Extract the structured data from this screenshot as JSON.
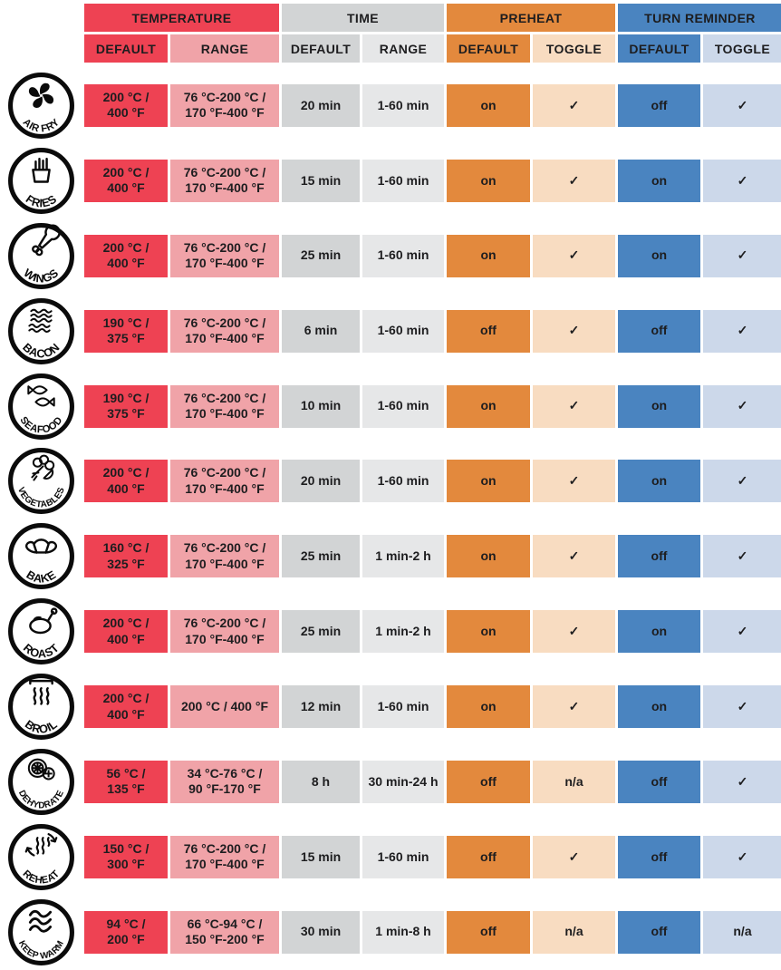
{
  "colors": {
    "brand_red": "#ee4253",
    "light_red": "#f0a3a8",
    "gray": "#d2d4d5",
    "light_gray": "#e6e7e8",
    "orange": "#e3893d",
    "light_orange": "#f8dcc1",
    "blue": "#4a84c0",
    "light_blue": "#ccd8ea",
    "icon_ink": "#0b0b0b",
    "text": "#1d1d1f"
  },
  "header": {
    "groups": [
      {
        "label": "TEMPERATURE"
      },
      {
        "label": "TIME"
      },
      {
        "label": "PREHEAT"
      },
      {
        "label": "TURN REMINDER"
      }
    ],
    "subheaders": [
      {
        "label": "DEFAULT"
      },
      {
        "label": "RANGE"
      },
      {
        "label": "DEFAULT"
      },
      {
        "label": "RANGE"
      },
      {
        "label": "DEFAULT"
      },
      {
        "label": "TOGGLE"
      },
      {
        "label": "DEFAULT"
      },
      {
        "label": "TOGGLE"
      }
    ]
  },
  "rows": [
    {
      "icon": "air-fry-icon",
      "label": "AIR FRY",
      "temp_default": "200 °C /\n400 °F",
      "temp_range": "76 °C-200 °C /\n170 °F-400 °F",
      "time_default": "20 min",
      "time_range": "1-60 min",
      "preheat_default": "on",
      "preheat_toggle": "✓",
      "turn_default": "off",
      "turn_toggle": "✓"
    },
    {
      "icon": "fries-icon",
      "label": "FRIES",
      "temp_default": "200 °C /\n400 °F",
      "temp_range": "76 °C-200 °C /\n170 °F-400 °F",
      "time_default": "15 min",
      "time_range": "1-60 min",
      "preheat_default": "on",
      "preheat_toggle": "✓",
      "turn_default": "on",
      "turn_toggle": "✓"
    },
    {
      "icon": "wings-icon",
      "label": "WINGS",
      "temp_default": "200 °C /\n400 °F",
      "temp_range": "76 °C-200 °C /\n170 °F-400 °F",
      "time_default": "25 min",
      "time_range": "1-60 min",
      "preheat_default": "on",
      "preheat_toggle": "✓",
      "turn_default": "on",
      "turn_toggle": "✓"
    },
    {
      "icon": "bacon-icon",
      "label": "BACON",
      "temp_default": "190 °C /\n375 °F",
      "temp_range": "76 °C-200 °C /\n170 °F-400 °F",
      "time_default": "6 min",
      "time_range": "1-60 min",
      "preheat_default": "off",
      "preheat_toggle": "✓",
      "turn_default": "off",
      "turn_toggle": "✓"
    },
    {
      "icon": "seafood-icon",
      "label": "SEAFOOD",
      "temp_default": "190 °C /\n375 °F",
      "temp_range": "76 °C-200 °C /\n170 °F-400 °F",
      "time_default": "10 min",
      "time_range": "1-60 min",
      "preheat_default": "on",
      "preheat_toggle": "✓",
      "turn_default": "on",
      "turn_toggle": "✓"
    },
    {
      "icon": "vegetables-icon",
      "label": "VEGETABLES",
      "temp_default": "200 °C /\n400 °F",
      "temp_range": "76 °C-200 °C /\n170 °F-400 °F",
      "time_default": "20 min",
      "time_range": "1-60 min",
      "preheat_default": "on",
      "preheat_toggle": "✓",
      "turn_default": "on",
      "turn_toggle": "✓"
    },
    {
      "icon": "bake-icon",
      "label": "BAKE",
      "temp_default": "160 °C /\n325 °F",
      "temp_range": "76 °C-200 °C /\n170 °F-400 °F",
      "time_default": "25 min",
      "time_range": "1 min-2 h",
      "preheat_default": "on",
      "preheat_toggle": "✓",
      "turn_default": "off",
      "turn_toggle": "✓"
    },
    {
      "icon": "roast-icon",
      "label": "ROAST",
      "temp_default": "200 °C /\n400 °F",
      "temp_range": "76 °C-200 °C /\n170 °F-400 °F",
      "time_default": "25 min",
      "time_range": "1 min-2 h",
      "preheat_default": "on",
      "preheat_toggle": "✓",
      "turn_default": "on",
      "turn_toggle": "✓"
    },
    {
      "icon": "broil-icon",
      "label": "BROIL",
      "temp_default": "200 °C /\n400 °F",
      "temp_range": "200 °C / 400 °F",
      "time_default": "12 min",
      "time_range": "1-60 min",
      "preheat_default": "on",
      "preheat_toggle": "✓",
      "turn_default": "on",
      "turn_toggle": "✓"
    },
    {
      "icon": "dehydrate-icon",
      "label": "DEHYDRATE",
      "temp_default": "56 °C /\n135 °F",
      "temp_range": "34 °C-76 °C /\n90 °F-170 °F",
      "time_default": "8 h",
      "time_range": "30 min-24 h",
      "preheat_default": "off",
      "preheat_toggle": "n/a",
      "turn_default": "off",
      "turn_toggle": "✓"
    },
    {
      "icon": "reheat-icon",
      "label": "REHEAT",
      "temp_default": "150 °C /\n300 °F",
      "temp_range": "76 °C-200 °C /\n170 °F-400 °F",
      "time_default": "15 min",
      "time_range": "1-60 min",
      "preheat_default": "off",
      "preheat_toggle": "✓",
      "turn_default": "off",
      "turn_toggle": "✓"
    },
    {
      "icon": "keep-warm-icon",
      "label": "KEEP WARM",
      "temp_default": "94 °C /\n200 °F",
      "temp_range": "66 °C-94 °C /\n150 °F-200 °F",
      "time_default": "30 min",
      "time_range": "1 min-8 h",
      "preheat_default": "off",
      "preheat_toggle": "n/a",
      "turn_default": "off",
      "turn_toggle": "n/a"
    }
  ]
}
